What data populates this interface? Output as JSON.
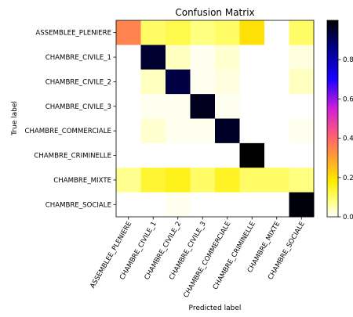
{
  "chart_data": {
    "type": "heatmap",
    "title": "Confusion Matrix",
    "xlabel": "Predicted label",
    "ylabel": "True label",
    "categories": [
      "ASSEMBLEE_PLENIERE",
      "CHAMBRE_CIVILE_1",
      "CHAMBRE_CIVILE_2",
      "CHAMBRE_CIVILE_3",
      "CHAMBRE_COMMERCIALE",
      "CHAMBRE_CRIMINELLE",
      "CHAMBRE_MIXTE",
      "CHAMBRE_SOCIALE"
    ],
    "values": [
      [
        0.35,
        0.1,
        0.12,
        0.08,
        0.1,
        0.2,
        0.0,
        0.1
      ],
      [
        0.0,
        0.95,
        0.04,
        0.01,
        0.03,
        0.0,
        0.0,
        0.02
      ],
      [
        0.0,
        0.04,
        0.93,
        0.01,
        0.02,
        0.0,
        0.0,
        0.04
      ],
      [
        0.0,
        0.01,
        0.01,
        0.97,
        0.01,
        0.0,
        0.0,
        0.0
      ],
      [
        0.0,
        0.03,
        0.01,
        0.01,
        0.96,
        0.0,
        0.0,
        0.01
      ],
      [
        0.0,
        0.0,
        0.0,
        0.0,
        0.0,
        1.0,
        0.0,
        0.0
      ],
      [
        0.07,
        0.14,
        0.16,
        0.1,
        0.15,
        0.1,
        0.1,
        0.08
      ],
      [
        0.0,
        0.0,
        0.01,
        0.0,
        0.0,
        0.0,
        0.0,
        0.99
      ]
    ],
    "colorbar": {
      "range": [
        0.0,
        1.0
      ],
      "ticks": [
        "0.0",
        "0.2",
        "0.4",
        "0.6",
        "0.8"
      ],
      "colormap": "gnuplot2_r"
    },
    "grid": false
  }
}
